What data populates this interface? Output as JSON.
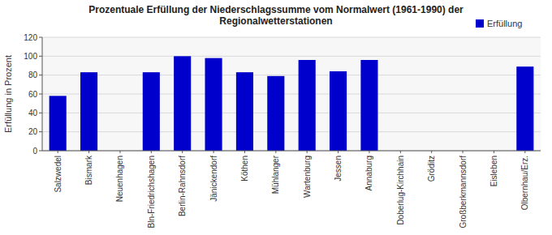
{
  "chart_data": {
    "type": "bar",
    "title": "Prozentuale Erfüllung der Niederschlagssumme vom Normalwert (1961-1990) der\nRegionalwetterstationen",
    "ylabel": "Erfüllung in Prozent",
    "categories": [
      "Salzwedel",
      "Bismark",
      "Neuenhagen",
      "Bln-Friedrichshagen",
      "Berlin-Rahnsdorf",
      "Jänickendorf",
      "Köthen",
      "Mühlanger",
      "Wartenburg",
      "Jessen",
      "Annaburg",
      "Doberlug-Kirchhain",
      "Gröditz",
      "Großberkmannsdorf",
      "Eisleben",
      "Olbernhau/Erz."
    ],
    "series": [
      {
        "name": "Erfüllung",
        "color": "#0000cc",
        "values": [
          58,
          83,
          0,
          83,
          100,
          98,
          83,
          79,
          96,
          84,
          96,
          0,
          0,
          0,
          0,
          89
        ]
      }
    ],
    "ylim": [
      0,
      120
    ],
    "yticks": [
      0,
      20,
      40,
      60,
      80,
      100,
      120
    ],
    "grid": true,
    "legend": "top-right"
  }
}
